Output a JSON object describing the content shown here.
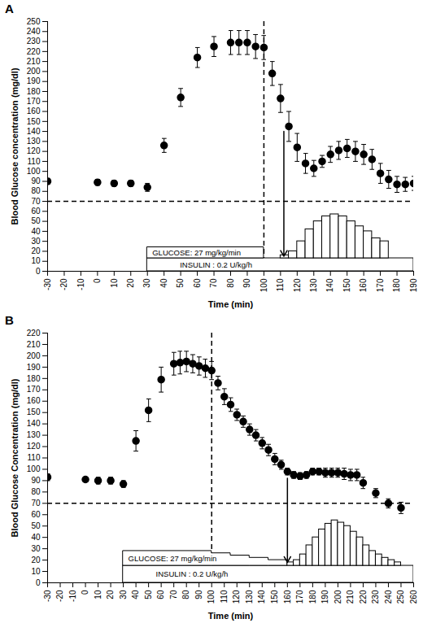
{
  "chart_data": [
    {
      "type": "scatter",
      "title": "A",
      "x_label": "Time (min)",
      "y_label": "Blood Glucose concentration (mg/dl)",
      "xlim": [
        -30,
        190
      ],
      "xticks": [
        -30,
        -20,
        -10,
        0,
        10,
        20,
        30,
        40,
        50,
        60,
        70,
        80,
        90,
        100,
        110,
        120,
        130,
        140,
        150,
        160,
        170,
        180,
        190
      ],
      "ylim": [
        0,
        250
      ],
      "yticks": [
        0,
        10,
        20,
        30,
        40,
        50,
        60,
        70,
        80,
        90,
        100,
        110,
        120,
        130,
        140,
        150,
        160,
        170,
        180,
        190,
        200,
        210,
        220,
        230,
        240,
        250
      ],
      "grid": false,
      "series": [
        {
          "color": "#000000",
          "marker": "circle",
          "x": [
            -30,
            0,
            10,
            20,
            30,
            40,
            50,
            60,
            70,
            80,
            85,
            90,
            95,
            100,
            105,
            110,
            115,
            120,
            125,
            130,
            135,
            140,
            145,
            150,
            155,
            160,
            165,
            170,
            175,
            180,
            185,
            190
          ],
          "values": [
            90,
            89,
            88,
            88,
            84,
            126,
            174,
            214,
            225,
            229,
            229,
            229,
            225,
            224,
            198,
            173,
            145,
            124,
            108,
            103,
            110,
            117,
            121,
            123,
            120,
            117,
            112,
            98,
            92,
            87,
            87,
            88
          ],
          "errors": [
            3,
            3,
            3,
            3,
            4,
            7,
            9,
            10,
            10,
            12,
            12,
            12,
            12,
            12,
            12,
            14,
            15,
            14,
            10,
            8,
            6,
            8,
            9,
            9,
            10,
            10,
            10,
            10,
            9,
            8,
            7,
            7
          ]
        }
      ],
      "hline": 70,
      "vline": 100,
      "infusions": [
        {
          "label": "INSULIN : 0.2 U/kg/h",
          "edges": [
            30,
            190
          ],
          "tops": [
            13
          ],
          "base": 0
        },
        {
          "label": "GLUCOSE: 27 mg/kg/min",
          "edges": [
            30,
            100
          ],
          "tops": [
            24
          ],
          "base": 13
        }
      ],
      "infusion_rate": {
        "bins": [
          110,
          115,
          120,
          125,
          130,
          135,
          140,
          145,
          150,
          155,
          160,
          165,
          170,
          175
        ],
        "values": [
          16,
          20,
          30,
          42,
          50,
          55,
          57,
          55,
          50,
          45,
          40,
          33,
          30
        ],
        "base": 13
      },
      "arrow": {
        "x": 112,
        "y1": 140,
        "y2": 15
      }
    },
    {
      "type": "scatter",
      "title": "B",
      "x_label": "Time (min)",
      "y_label": "Blood Glucose Concentration (mg/dl)",
      "xlim": [
        -30,
        260
      ],
      "xticks": [
        -30,
        -20,
        -10,
        0,
        10,
        20,
        30,
        40,
        50,
        60,
        70,
        80,
        90,
        100,
        110,
        120,
        130,
        140,
        150,
        160,
        170,
        180,
        190,
        200,
        210,
        220,
        230,
        240,
        250,
        260
      ],
      "ylim": [
        0,
        220
      ],
      "yticks": [
        0,
        10,
        20,
        30,
        40,
        50,
        60,
        70,
        80,
        90,
        100,
        110,
        120,
        130,
        140,
        150,
        160,
        170,
        180,
        190,
        200,
        210,
        220
      ],
      "grid": false,
      "series": [
        {
          "color": "#000000",
          "marker": "circle",
          "x": [
            -30,
            0,
            10,
            20,
            30,
            40,
            50,
            60,
            70,
            75,
            80,
            85,
            90,
            95,
            100,
            105,
            110,
            115,
            120,
            125,
            130,
            135,
            140,
            145,
            150,
            155,
            160,
            165,
            170,
            175,
            180,
            185,
            190,
            195,
            200,
            205,
            210,
            215,
            220,
            230,
            240,
            250
          ],
          "values": [
            93,
            91,
            90,
            90,
            87,
            125,
            152,
            179,
            193,
            194,
            195,
            193,
            191,
            189,
            187,
            176,
            164,
            157,
            148,
            142,
            135,
            130,
            123,
            117,
            109,
            104,
            98,
            95,
            94,
            95,
            98,
            98,
            97,
            97,
            97,
            96,
            95,
            95,
            88,
            79,
            70,
            66
          ],
          "errors": [
            3,
            2,
            3,
            3,
            3,
            9,
            10,
            11,
            10,
            10,
            9,
            8,
            8,
            8,
            8,
            6,
            7,
            6,
            5,
            5,
            5,
            5,
            5,
            5,
            5,
            4,
            3,
            3,
            3,
            3,
            3,
            3,
            4,
            4,
            4,
            5,
            5,
            5,
            5,
            4,
            4,
            5
          ]
        }
      ],
      "hline": 70,
      "vline": 100,
      "infusions": [
        {
          "label": "INSULIN : 0.2 U/kg/h",
          "edges": [
            30,
            260
          ],
          "tops": [
            15
          ],
          "base": 0
        },
        {
          "label": "GLUCOSE: 27 mg/kg/min",
          "edges": [
            30,
            100,
            115,
            130,
            145,
            160
          ],
          "tops": [
            28,
            26,
            24,
            22,
            20
          ],
          "base": 15
        }
      ],
      "infusion_rate": {
        "bins": [
          160,
          165,
          170,
          175,
          180,
          185,
          190,
          195,
          200,
          205,
          210,
          215,
          220,
          225,
          230,
          235,
          240,
          245,
          250
        ],
        "values": [
          18,
          20,
          25,
          33,
          40,
          47,
          52,
          55,
          53,
          50,
          45,
          40,
          33,
          28,
          25,
          22,
          20,
          18
        ],
        "base": 15
      },
      "arrow": {
        "x": 160,
        "y1": 92,
        "y2": 18
      }
    }
  ]
}
